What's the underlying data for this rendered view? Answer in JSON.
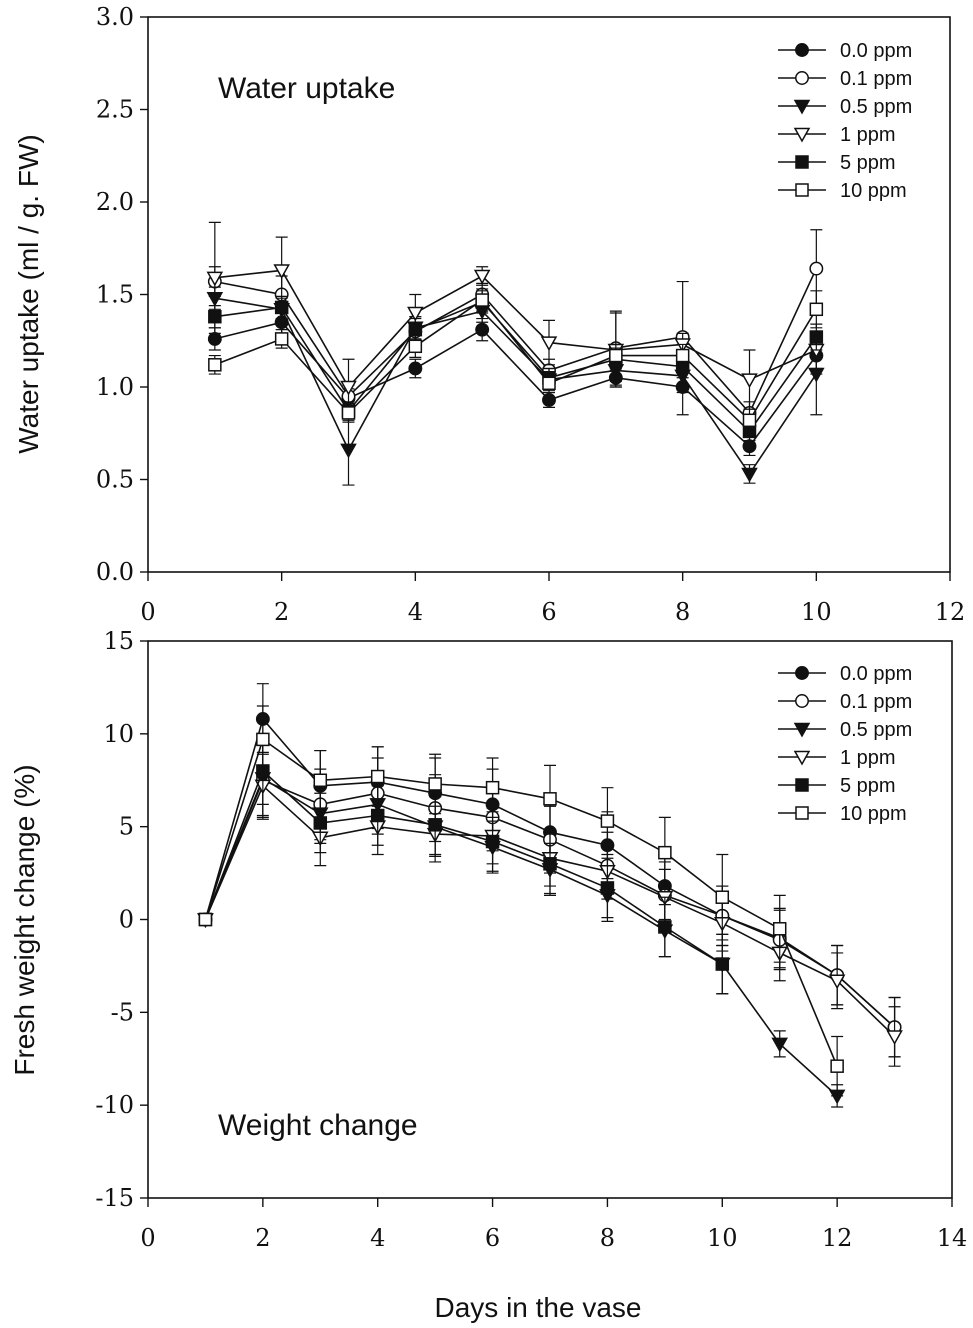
{
  "shared_xlabel": "Days in the vase",
  "chart_data": [
    {
      "type": "line",
      "title": "Water uptake",
      "xlabel": "",
      "ylabel": "Water uptake (ml / g. FW)",
      "xlim": [
        0,
        12
      ],
      "ylim": [
        0,
        3
      ],
      "xticks": [
        0,
        2,
        4,
        6,
        8,
        10,
        12
      ],
      "yticks": [
        0.0,
        0.5,
        1.0,
        1.5,
        2.0,
        2.5,
        3.0
      ],
      "ytick_decimals": 1,
      "grid": false,
      "legend_position": "top-right",
      "x": [
        1,
        2,
        3,
        4,
        5,
        6,
        7,
        8,
        9,
        10
      ],
      "series": [
        {
          "name": "0.0 ppm",
          "marker": "circle",
          "fill": "filled",
          "values": [
            1.26,
            1.35,
            0.94,
            1.1,
            1.31,
            0.93,
            1.05,
            1.0,
            0.68,
            1.17
          ],
          "errors": [
            0.06,
            0.06,
            0.05,
            0.05,
            0.06,
            0.04,
            0.05,
            0.15,
            0.05,
            0.1
          ]
        },
        {
          "name": "0.1 ppm",
          "marker": "circle",
          "fill": "open",
          "values": [
            1.57,
            1.5,
            0.95,
            1.3,
            1.5,
            1.09,
            1.21,
            1.27,
            0.86,
            1.64
          ],
          "errors": [
            0.08,
            0.1,
            0.06,
            0.08,
            0.06,
            0.06,
            0.2,
            0.3,
            0.06,
            0.21
          ]
        },
        {
          "name": "0.5 ppm",
          "marker": "triangle-down",
          "fill": "filled",
          "values": [
            1.48,
            1.42,
            0.66,
            1.32,
            1.41,
            1.04,
            1.09,
            1.06,
            0.53,
            1.07
          ],
          "errors": [
            0.06,
            0.06,
            0.19,
            0.06,
            0.06,
            0.06,
            0.06,
            0.06,
            0.05,
            0.22
          ]
        },
        {
          "name": "1 ppm",
          "marker": "triangle-down",
          "fill": "open",
          "values": [
            1.59,
            1.63,
            1.0,
            1.4,
            1.6,
            1.24,
            1.2,
            1.23,
            1.04,
            1.2
          ],
          "errors": [
            0.3,
            0.18,
            0.15,
            0.1,
            0.05,
            0.12,
            0.2,
            0.06,
            0.16,
            0.1
          ]
        },
        {
          "name": "5 ppm",
          "marker": "square",
          "fill": "filled",
          "values": [
            1.38,
            1.43,
            0.87,
            1.31,
            1.46,
            1.05,
            1.15,
            1.11,
            0.76,
            1.27
          ],
          "errors": [
            0.06,
            0.06,
            0.05,
            0.06,
            0.06,
            0.05,
            0.06,
            0.06,
            0.05,
            0.07
          ]
        },
        {
          "name": "10 ppm",
          "marker": "square",
          "fill": "open",
          "values": [
            1.12,
            1.26,
            0.86,
            1.22,
            1.47,
            1.02,
            1.17,
            1.17,
            0.82,
            1.42
          ],
          "errors": [
            0.05,
            0.05,
            0.05,
            0.06,
            0.06,
            0.05,
            0.06,
            0.06,
            0.06,
            0.1
          ]
        }
      ]
    },
    {
      "type": "line",
      "title": "Weight change",
      "xlabel": "",
      "ylabel": "Fresh weight change (%)",
      "xlim": [
        0,
        14
      ],
      "ylim": [
        -15,
        15
      ],
      "xticks": [
        0,
        2,
        4,
        6,
        8,
        10,
        12,
        14
      ],
      "yticks": [
        -15,
        -10,
        -5,
        0,
        5,
        10,
        15
      ],
      "ytick_decimals": 0,
      "grid": false,
      "legend_position": "top-right",
      "x": [
        1,
        2,
        3,
        4,
        5,
        6,
        7,
        8,
        9,
        10,
        11,
        12,
        13
      ],
      "series": [
        {
          "name": "0.0 ppm",
          "marker": "circle",
          "fill": "filled",
          "values": [
            0,
            10.8,
            7.2,
            7.4,
            6.8,
            6.2,
            4.7,
            4.0,
            1.8,
            0.2,
            -1.0,
            -3.0,
            -5.8
          ],
          "errors": [
            0,
            1.9,
            1.9,
            1.9,
            1.9,
            1.9,
            1.8,
            1.8,
            1.8,
            1.6,
            1.6,
            1.6,
            1.6
          ]
        },
        {
          "name": "0.1 ppm",
          "marker": "circle",
          "fill": "open",
          "values": [
            0,
            7.5,
            6.2,
            6.8,
            6.0,
            5.5,
            4.3,
            2.9,
            1.3,
            0.2,
            -1.1,
            -3.0,
            -5.8
          ],
          "errors": [
            0,
            2.0,
            1.9,
            1.9,
            1.8,
            1.8,
            1.8,
            1.8,
            1.8,
            1.6,
            1.6,
            1.6,
            1.6
          ]
        },
        {
          "name": "0.5 ppm",
          "marker": "triangle-down",
          "fill": "filled",
          "values": [
            0,
            7.6,
            5.7,
            6.2,
            5.0,
            3.9,
            2.7,
            1.3,
            -0.6,
            -2.4,
            -6.7,
            -9.5,
            null
          ],
          "errors": [
            0,
            2.0,
            1.6,
            1.6,
            1.6,
            1.4,
            1.4,
            1.4,
            1.4,
            1.6,
            0.7,
            0.6,
            0
          ]
        },
        {
          "name": "1 ppm",
          "marker": "triangle-down",
          "fill": "open",
          "values": [
            0,
            7.2,
            4.4,
            5.0,
            4.6,
            4.5,
            3.3,
            2.6,
            1.2,
            -0.2,
            -1.8,
            -3.3,
            -6.3
          ],
          "errors": [
            0,
            1.8,
            1.5,
            1.5,
            1.5,
            1.5,
            1.5,
            1.5,
            1.5,
            1.5,
            1.5,
            1.5,
            1.6
          ]
        },
        {
          "name": "5 ppm",
          "marker": "square",
          "fill": "filled",
          "values": [
            0,
            8.0,
            5.2,
            5.6,
            5.1,
            4.2,
            3.0,
            1.7,
            -0.4,
            -2.4,
            null,
            null,
            null
          ],
          "errors": [
            0,
            1.8,
            1.6,
            1.6,
            1.6,
            1.6,
            1.6,
            1.6,
            1.6,
            1.6,
            0,
            0,
            0
          ]
        },
        {
          "name": "10 ppm",
          "marker": "square",
          "fill": "open",
          "values": [
            0,
            9.7,
            7.5,
            7.7,
            7.3,
            7.1,
            6.5,
            5.3,
            3.6,
            1.2,
            -0.5,
            -7.9,
            null
          ],
          "errors": [
            0,
            1.8,
            1.6,
            1.6,
            1.6,
            1.6,
            1.8,
            1.8,
            1.9,
            2.3,
            1.8,
            1.6,
            0
          ]
        }
      ]
    }
  ]
}
